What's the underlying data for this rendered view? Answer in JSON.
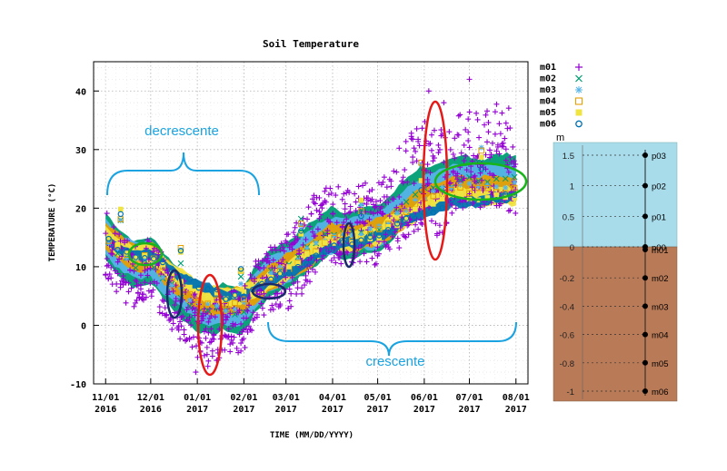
{
  "chart_data": {
    "type": "scatter",
    "title": "Soil Temperature",
    "xlabel": "TIME (MM/DD/YYYY)",
    "ylabel": "TEMPERATURE (°C)",
    "ylim": [
      -10,
      45
    ],
    "yticks": [
      "-10",
      "0",
      "10",
      "20",
      "30",
      "40"
    ],
    "xticks": [
      {
        "day": 0,
        "month": "11/01",
        "year": "2016"
      },
      {
        "day": 30,
        "month": "12/01",
        "year": "2016"
      },
      {
        "day": 61,
        "month": "01/01",
        "year": "2017"
      },
      {
        "day": 92,
        "month": "02/01",
        "year": "2017"
      },
      {
        "day": 120,
        "month": "03/01",
        "year": "2017"
      },
      {
        "day": 151,
        "month": "04/01",
        "year": "2017"
      },
      {
        "day": 181,
        "month": "05/01",
        "year": "2017"
      },
      {
        "day": 212,
        "month": "06/01",
        "year": "2017"
      },
      {
        "day": 242,
        "month": "07/01",
        "year": "2017"
      },
      {
        "day": 273,
        "month": "08/01",
        "year": "2017"
      }
    ],
    "xlim_days": [
      -8,
      281
    ],
    "grid": true,
    "legend_position": "right",
    "series": [
      {
        "name": "m01",
        "marker": "plus",
        "color": "#9400d3",
        "points": [
          [
            0,
            14
          ],
          [
            10,
            10
          ],
          [
            20,
            8
          ],
          [
            30,
            10
          ],
          [
            40,
            6
          ],
          [
            50,
            3
          ],
          [
            60,
            0
          ],
          [
            70,
            -2
          ],
          [
            80,
            1
          ],
          [
            90,
            0
          ],
          [
            100,
            6
          ],
          [
            110,
            8
          ],
          [
            120,
            9
          ],
          [
            130,
            12
          ],
          [
            140,
            16
          ],
          [
            150,
            18
          ],
          [
            160,
            16
          ],
          [
            170,
            18
          ],
          [
            180,
            17
          ],
          [
            190,
            20
          ],
          [
            200,
            23
          ],
          [
            210,
            26
          ],
          [
            215,
            28
          ],
          [
            220,
            24
          ],
          [
            230,
            26
          ],
          [
            240,
            28
          ],
          [
            250,
            27
          ],
          [
            260,
            29
          ],
          [
            270,
            28
          ]
        ]
      },
      {
        "name": "m02",
        "marker": "cross",
        "color": "#009e73",
        "points": [
          [
            0,
            15
          ],
          [
            10,
            12
          ],
          [
            20,
            10
          ],
          [
            30,
            11
          ],
          [
            40,
            8
          ],
          [
            50,
            5
          ],
          [
            60,
            3
          ],
          [
            70,
            2
          ],
          [
            80,
            3
          ],
          [
            90,
            2
          ],
          [
            100,
            6
          ],
          [
            110,
            9
          ],
          [
            120,
            10
          ],
          [
            130,
            12
          ],
          [
            140,
            14
          ],
          [
            150,
            16
          ],
          [
            160,
            15
          ],
          [
            170,
            16
          ],
          [
            180,
            16
          ],
          [
            190,
            18
          ],
          [
            200,
            21
          ],
          [
            210,
            23
          ],
          [
            220,
            23
          ],
          [
            230,
            24
          ],
          [
            240,
            25
          ],
          [
            250,
            24
          ],
          [
            260,
            25
          ],
          [
            270,
            25
          ]
        ]
      },
      {
        "name": "m03",
        "marker": "star",
        "color": "#56b4e9",
        "points": [
          [
            0,
            15
          ],
          [
            10,
            12
          ],
          [
            20,
            11
          ],
          [
            30,
            11
          ],
          [
            40,
            8
          ],
          [
            50,
            6
          ],
          [
            60,
            4
          ],
          [
            70,
            3
          ],
          [
            80,
            3
          ],
          [
            90,
            3
          ],
          [
            100,
            6
          ],
          [
            110,
            9
          ],
          [
            120,
            10
          ],
          [
            130,
            12
          ],
          [
            140,
            14
          ],
          [
            150,
            15
          ],
          [
            160,
            15
          ],
          [
            170,
            16
          ],
          [
            180,
            16
          ],
          [
            190,
            18
          ],
          [
            200,
            20
          ],
          [
            210,
            22
          ],
          [
            220,
            23
          ],
          [
            230,
            24
          ],
          [
            240,
            24
          ],
          [
            250,
            24
          ],
          [
            260,
            24
          ],
          [
            270,
            24
          ]
        ]
      },
      {
        "name": "m04",
        "marker": "square_open",
        "color": "#e69f00",
        "points": [
          [
            0,
            15
          ],
          [
            10,
            13
          ],
          [
            20,
            11
          ],
          [
            30,
            12
          ],
          [
            40,
            9
          ],
          [
            50,
            7
          ],
          [
            60,
            5
          ],
          [
            70,
            4
          ],
          [
            80,
            4
          ],
          [
            90,
            4
          ],
          [
            100,
            6
          ],
          [
            110,
            8
          ],
          [
            120,
            10
          ],
          [
            130,
            11
          ],
          [
            140,
            13
          ],
          [
            150,
            15
          ],
          [
            160,
            15
          ],
          [
            170,
            15
          ],
          [
            180,
            16
          ],
          [
            190,
            17
          ],
          [
            200,
            19
          ],
          [
            210,
            21
          ],
          [
            220,
            22
          ],
          [
            230,
            23
          ],
          [
            240,
            23
          ],
          [
            250,
            23
          ],
          [
            260,
            23
          ],
          [
            270,
            23
          ]
        ]
      },
      {
        "name": "m05",
        "marker": "square_filled",
        "color": "#f0e442",
        "points": [
          [
            0,
            15
          ],
          [
            10,
            13
          ],
          [
            20,
            12
          ],
          [
            30,
            12
          ],
          [
            40,
            10
          ],
          [
            50,
            8
          ],
          [
            60,
            6
          ],
          [
            70,
            5
          ],
          [
            80,
            5
          ],
          [
            90,
            5
          ],
          [
            100,
            6
          ],
          [
            110,
            8
          ],
          [
            120,
            9
          ],
          [
            130,
            11
          ],
          [
            140,
            13
          ],
          [
            150,
            14
          ],
          [
            160,
            14
          ],
          [
            170,
            15
          ],
          [
            180,
            15
          ],
          [
            190,
            17
          ],
          [
            200,
            18
          ],
          [
            210,
            20
          ],
          [
            220,
            21
          ],
          [
            230,
            22
          ],
          [
            240,
            22
          ],
          [
            250,
            22
          ],
          [
            260,
            22
          ],
          [
            270,
            22
          ]
        ]
      },
      {
        "name": "m06",
        "marker": "circle",
        "color": "#0072b2",
        "points": [
          [
            0,
            15
          ],
          [
            10,
            13
          ],
          [
            20,
            12
          ],
          [
            30,
            12
          ],
          [
            40,
            10
          ],
          [
            50,
            8
          ],
          [
            60,
            7
          ],
          [
            70,
            6
          ],
          [
            80,
            5
          ],
          [
            90,
            5
          ],
          [
            100,
            6
          ],
          [
            110,
            8
          ],
          [
            120,
            9
          ],
          [
            130,
            10
          ],
          [
            140,
            12
          ],
          [
            150,
            13
          ],
          [
            160,
            14
          ],
          [
            170,
            14
          ],
          [
            180,
            15
          ],
          [
            190,
            16
          ],
          [
            200,
            18
          ],
          [
            210,
            19
          ],
          [
            220,
            20
          ],
          [
            230,
            21
          ],
          [
            240,
            21
          ],
          [
            250,
            21
          ],
          [
            260,
            22
          ],
          [
            270,
            22
          ]
        ]
      }
    ],
    "annotations": {
      "decreasing_label": "decrescente",
      "increasing_label": "crescente"
    }
  },
  "depth_profile": {
    "unit": "m",
    "scale_ticks": [
      "1.5",
      "1",
      "0.5",
      "0",
      "-0.2",
      "-0.4",
      "-0.6",
      "-0.8",
      "-1"
    ],
    "air_probes": [
      {
        "label": "p03",
        "height": 1.5
      },
      {
        "label": "p02",
        "height": 1.0
      },
      {
        "label": "p01",
        "height": 0.5
      },
      {
        "label": "p00",
        "height": 0.0
      }
    ],
    "soil_probes": [
      {
        "label": "m01",
        "depth": 0.0
      },
      {
        "label": "m02",
        "depth": -0.2
      },
      {
        "label": "m03",
        "depth": -0.4
      },
      {
        "label": "m04",
        "depth": -0.6
      },
      {
        "label": "m05",
        "depth": -0.8
      },
      {
        "label": "m06",
        "depth": -1.0
      }
    ],
    "colors": {
      "air": "#a9dceb",
      "soil": "#b97a57"
    }
  }
}
